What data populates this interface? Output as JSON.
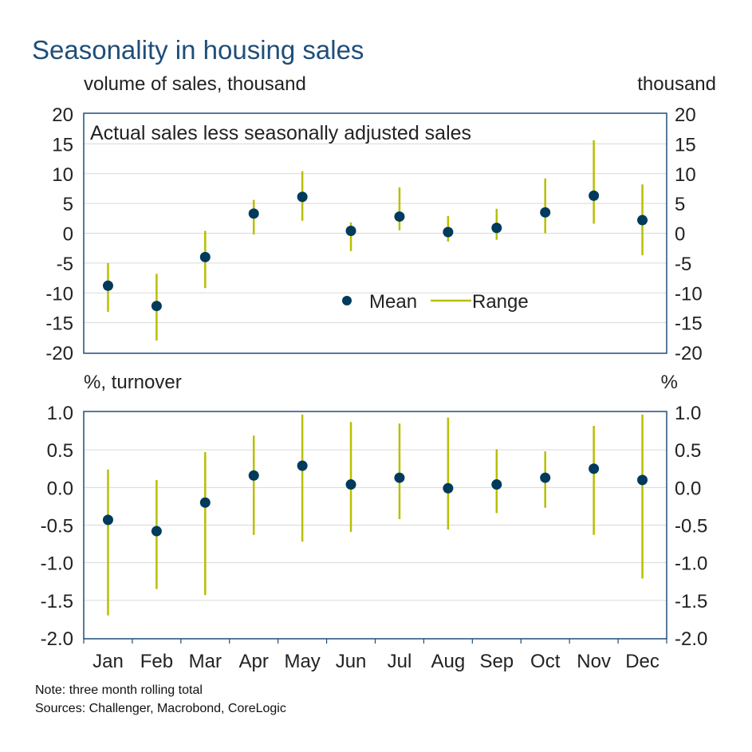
{
  "title": "Seasonality in housing sales",
  "notes": [
    "Note: three month rolling total",
    "Sources: Challenger, Macrobond, CoreLogic"
  ],
  "colors": {
    "title": "#1f4e79",
    "mean": "#003a5c",
    "range": "#b8bf00",
    "frame": "#1f4e79",
    "grid": "#d9d9d9"
  },
  "chart_data": [
    {
      "type": "scatter",
      "annotation": "Actual sales less seasonally adjusted sales",
      "ylabel_left": "volume of sales, thousand",
      "ylabel_right": "thousand",
      "ylim": [
        -20,
        20
      ],
      "yticks": [
        20,
        15,
        10,
        5,
        0,
        -5,
        -10,
        -15,
        -20
      ],
      "grid": true,
      "legend": {
        "placement": "center-right",
        "entries": [
          "Mean",
          "Range"
        ]
      },
      "categories": [
        "Jan",
        "Feb",
        "Mar",
        "Apr",
        "May",
        "Jun",
        "Jul",
        "Aug",
        "Sep",
        "Oct",
        "Nov",
        "Dec"
      ],
      "series": [
        {
          "name": "Mean",
          "values": [
            -8.8,
            -12.2,
            -4.0,
            3.3,
            6.1,
            0.4,
            2.8,
            0.2,
            0.9,
            3.5,
            6.3,
            2.2
          ]
        },
        {
          "name": "Range",
          "high": [
            -5.0,
            -6.8,
            0.4,
            5.6,
            10.4,
            1.8,
            7.7,
            2.9,
            4.1,
            9.2,
            15.6,
            8.2
          ],
          "low": [
            -13.2,
            -18.0,
            -9.2,
            -0.2,
            2.1,
            -3.0,
            0.5,
            -1.4,
            -1.1,
            0.0,
            1.6,
            -3.7
          ]
        }
      ]
    },
    {
      "type": "scatter",
      "ylabel_left": "%, turnover",
      "ylabel_right": "%",
      "ylim": [
        -2.0,
        1.0
      ],
      "yticks": [
        "1.0",
        "0.5",
        "0.0",
        "-0.5",
        "-1.0",
        "-1.5",
        "-2.0"
      ],
      "grid": true,
      "categories": [
        "Jan",
        "Feb",
        "Mar",
        "Apr",
        "May",
        "Jun",
        "Jul",
        "Aug",
        "Sep",
        "Oct",
        "Nov",
        "Dec"
      ],
      "series": [
        {
          "name": "Mean",
          "values": [
            -0.43,
            -0.58,
            -0.2,
            0.16,
            0.29,
            0.04,
            0.13,
            -0.01,
            0.04,
            0.13,
            0.25,
            0.1
          ]
        },
        {
          "name": "Range",
          "high": [
            0.24,
            0.1,
            0.47,
            0.69,
            0.97,
            0.87,
            0.85,
            0.93,
            0.51,
            0.48,
            0.82,
            0.97
          ],
          "low": [
            -1.7,
            -1.35,
            -1.43,
            -0.63,
            -0.72,
            -0.59,
            -0.42,
            -0.56,
            -0.34,
            -0.27,
            -0.63,
            -1.21
          ]
        }
      ]
    }
  ]
}
